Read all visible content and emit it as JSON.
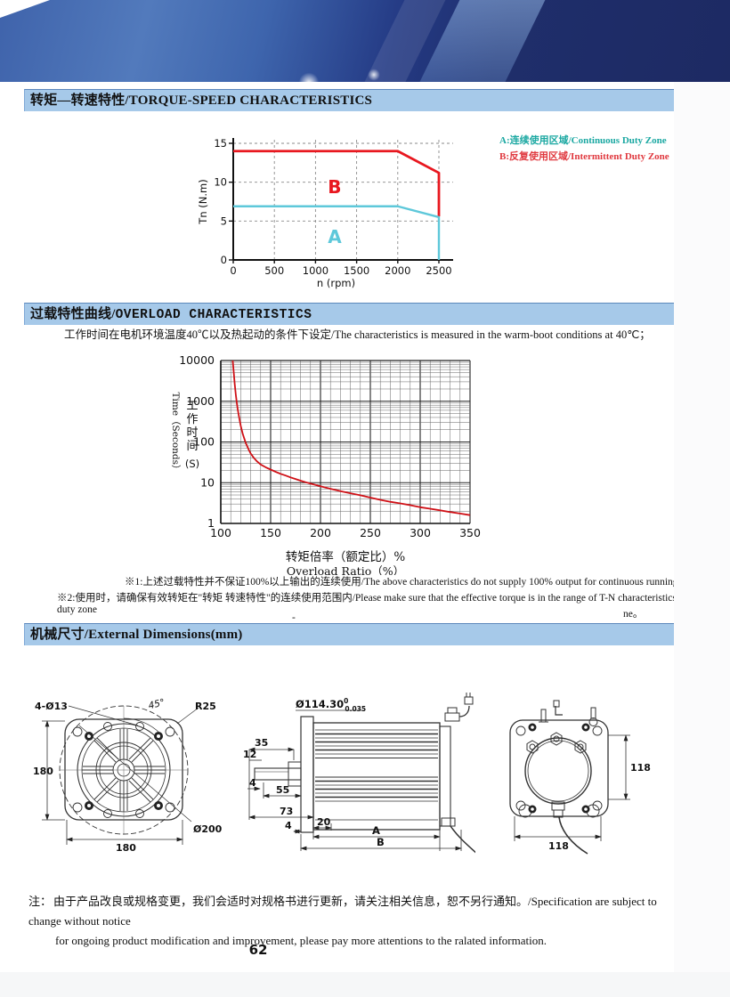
{
  "page": {
    "number": "62"
  },
  "banner": {
    "color_dark": "#1d2a63",
    "color_mid": "#3f63ab",
    "color_light": "#527abc",
    "stripe_highlight": "#96b9e6"
  },
  "sections": {
    "torque_speed": {
      "title": "转矩—转速特性/TORQUE-SPEED CHARACTERISTICS",
      "bar_color": "#a6c9e9"
    },
    "overload": {
      "title_cn": "过载特性曲线/",
      "title_en": "OVERLOAD CHARACTERISTICS",
      "intro": "工作时间在电机环境温度40℃以及热起动的条件下设定/The characteristics is measured in the warm-boot conditions at 40℃；",
      "note1": "※1:上述过载特性并不保证100%以上输出的连续使用/The above characteristics do not supply 100% output for continuous running；",
      "note2": "※2:使用时，请确保有效转矩在\"转矩 转速特性\"的连续使用范围内/Please make sure that the effective torque is in the range of T-N characteristics' continuous duty zone",
      "note2_tail": "ne。",
      "stray_dash": "-"
    },
    "dimensions": {
      "title": "机械尺寸/External Dimensions(mm)"
    }
  },
  "chart_data": [
    {
      "type": "line",
      "title": "",
      "xlabel": "n (rpm)",
      "ylabel": "Tn (N.m)",
      "xlim": [
        0,
        2500
      ],
      "ylim": [
        0,
        15
      ],
      "xticks": [
        0,
        500,
        1000,
        1500,
        2000,
        2500
      ],
      "yticks": [
        0,
        5,
        10,
        15
      ],
      "grid": "dashed",
      "series": [
        {
          "name": "B",
          "color": "#e8171f",
          "points": [
            [
              0,
              14
            ],
            [
              2000,
              14
            ],
            [
              2500,
              11.2
            ],
            [
              2500,
              5.6
            ]
          ]
        },
        {
          "name": "A",
          "color": "#5ec8da",
          "points": [
            [
              0,
              6.9
            ],
            [
              2000,
              6.9
            ],
            [
              2500,
              5.5
            ],
            [
              2500,
              0
            ]
          ]
        }
      ],
      "zone_labels": [
        {
          "text": "B",
          "x": 1150,
          "y": 8.6,
          "color": "#e8171f"
        },
        {
          "text": "A",
          "x": 1150,
          "y": 2.2,
          "color": "#5ec8da"
        }
      ],
      "legend": [
        {
          "label": "A:连续使用区域/Continuous Duty Zone",
          "color": "#1ba8a2"
        },
        {
          "label": "B:反复使用区域/Intermittent Duty Zone",
          "color": "#e0393f"
        }
      ],
      "legend_position": "right"
    },
    {
      "type": "line",
      "title": "",
      "x_scale": "linear",
      "y_scale": "log",
      "xlabel_cn": "转矩倍率（额定比）%",
      "xlabel_en": "Overload Ratio（%）",
      "ylabel_en": "Time（Seconds）",
      "ylabel_cn": "工作时间",
      "ylabel_unit": "(S)",
      "xlim": [
        100,
        350
      ],
      "ylim": [
        1,
        10000
      ],
      "xticks": [
        100,
        150,
        200,
        250,
        300,
        350
      ],
      "yticks": [
        1,
        10,
        100,
        1000,
        10000
      ],
      "x_minor_step": 10,
      "grid": "full",
      "series": [
        {
          "name": "overload-limit",
          "color": "#cf1016",
          "points": [
            [
              112,
              10000
            ],
            [
              113,
              5000
            ],
            [
              114,
              2600
            ],
            [
              115,
              1500
            ],
            [
              116,
              950
            ],
            [
              117,
              640
            ],
            [
              118,
              450
            ],
            [
              120,
              250
            ],
            [
              122,
              160
            ],
            [
              125,
              95
            ],
            [
              128,
              65
            ],
            [
              130,
              52
            ],
            [
              133,
              41
            ],
            [
              136,
              34
            ],
            [
              140,
              28
            ],
            [
              145,
              24
            ],
            [
              150,
              21
            ],
            [
              155,
              18.5
            ],
            [
              160,
              16.5
            ],
            [
              165,
              15
            ],
            [
              170,
              13.5
            ],
            [
              175,
              12.3
            ],
            [
              180,
              11.2
            ],
            [
              185,
              10.3
            ],
            [
              190,
              9.5
            ],
            [
              195,
              8.8
            ],
            [
              200,
              8.2
            ],
            [
              210,
              7.1
            ],
            [
              220,
              6.2
            ],
            [
              230,
              5.5
            ],
            [
              240,
              4.9
            ],
            [
              250,
              4.3
            ],
            [
              260,
              3.8
            ],
            [
              270,
              3.4
            ],
            [
              280,
              3.1
            ],
            [
              290,
              2.8
            ],
            [
              300,
              2.5
            ],
            [
              310,
              2.3
            ],
            [
              320,
              2.1
            ],
            [
              330,
              1.9
            ],
            [
              340,
              1.75
            ],
            [
              350,
              1.6
            ]
          ]
        }
      ]
    }
  ],
  "drawings": {
    "front_view": {
      "labels": {
        "holes": "4-Ø13",
        "angle": "45°",
        "corner_radius": "R25",
        "height": "180",
        "width": "180",
        "outer_diameter": "Ø200"
      }
    },
    "side_view": {
      "labels": {
        "shaft_diameter": "Ø114.30",
        "tolerance_upper": "0",
        "tolerance_lower": "0.035",
        "dim_35": "35",
        "dim_12": "12",
        "dim_4_front": "4",
        "dim_55": "55",
        "dim_73": "73",
        "dim_4_flange": "4",
        "dim_20": "20",
        "dim_a": "A",
        "dim_b": "B"
      }
    },
    "rear_view": {
      "labels": {
        "height": "118",
        "width": "118"
      }
    }
  },
  "footer": {
    "label": "注：",
    "line1": "由于产品改良或规格变更，我们会适时对规格书进行更新，请关注相关信息，恕不另行通知。/Specification are subject to change without notice",
    "line2": "for ongoing product modification and improvement, please pay more attentions to the ralated information."
  }
}
